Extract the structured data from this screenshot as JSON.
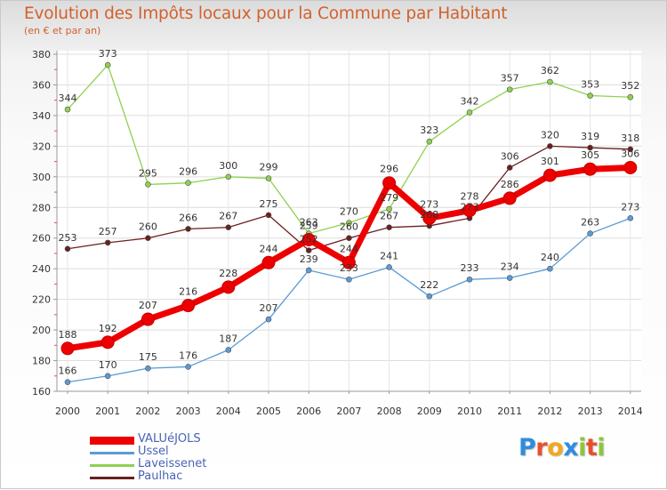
{
  "header": {
    "title": "Evolution des Impôts locaux pour la Commune par Habitant",
    "subtitle": "(en € et par an)"
  },
  "logo": {
    "text": "Proxiti",
    "letter_colors": [
      "#2f8de0",
      "#e8502d",
      "#f2a81d",
      "#2f8de0",
      "#8cc63f",
      "#e8502d",
      "#8cc63f"
    ]
  },
  "chart_data": {
    "type": "line",
    "title": "Evolution des Impôts locaux pour la Commune par Habitant",
    "subtitle": "(en € et par an)",
    "xlabel": "",
    "ylabel": "",
    "x": [
      "2000",
      "2001",
      "2002",
      "2003",
      "2004",
      "2005",
      "2006",
      "2007",
      "2008",
      "2009",
      "2010",
      "2011",
      "2012",
      "2013",
      "2014"
    ],
    "ylim": [
      160,
      380
    ],
    "yticks": [
      160,
      180,
      200,
      220,
      240,
      260,
      280,
      300,
      320,
      340,
      360,
      380
    ],
    "grid": true,
    "legend_position": "bottom-left",
    "series": [
      {
        "name": "VALUéJOLS",
        "color": "#ee0000",
        "emphasis": true,
        "values": [
          188,
          192,
          207,
          216,
          228,
          244,
          259,
          244,
          296,
          273,
          278,
          286,
          301,
          305,
          306
        ]
      },
      {
        "name": "Ussel",
        "color": "#5b9bd5",
        "values": [
          166,
          170,
          175,
          176,
          187,
          207,
          239,
          233,
          241,
          222,
          233,
          234,
          240,
          263,
          273
        ]
      },
      {
        "name": "Laveissenet",
        "color": "#8fd14f",
        "values": [
          344,
          373,
          295,
          296,
          300,
          299,
          263,
          270,
          279,
          323,
          342,
          357,
          362,
          353,
          352
        ]
      },
      {
        "name": "Paulhac",
        "color": "#6b1f1f",
        "values": [
          253,
          257,
          260,
          266,
          267,
          275,
          252,
          260,
          267,
          268,
          273,
          306,
          320,
          319,
          318
        ]
      }
    ],
    "draw_order": [
      1,
      3,
      2,
      0
    ]
  }
}
